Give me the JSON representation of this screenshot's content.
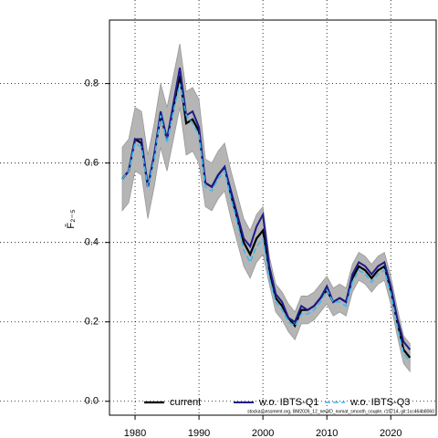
{
  "chart_data": {
    "type": "line",
    "ylabel": "F̄₂₋₅",
    "footnote": "stockassessment.org, BM2026_12_newID_nomat_smooth_couple, r19714, git:1cc464b8060",
    "x": [
      1978,
      1979,
      1980,
      1981,
      1982,
      1983,
      1984,
      1985,
      1986,
      1987,
      1988,
      1989,
      1990,
      1991,
      1992,
      1993,
      1994,
      1995,
      1996,
      1997,
      1998,
      1999,
      2000,
      2001,
      2002,
      2003,
      2004,
      2005,
      2006,
      2007,
      2008,
      2009,
      2010,
      2011,
      2012,
      2013,
      2014,
      2015,
      2016,
      2017,
      2018,
      2019,
      2020,
      2021,
      2022,
      2023
    ],
    "band": {
      "color": "#b5b5b5",
      "upper": [
        0.64,
        0.66,
        0.74,
        0.73,
        0.62,
        0.7,
        0.8,
        0.74,
        0.82,
        0.9,
        0.78,
        0.79,
        0.76,
        0.61,
        0.6,
        0.63,
        0.65,
        0.58,
        0.52,
        0.46,
        0.43,
        0.47,
        0.49,
        0.365,
        0.295,
        0.275,
        0.245,
        0.225,
        0.265,
        0.265,
        0.275,
        0.295,
        0.315,
        0.285,
        0.295,
        0.285,
        0.345,
        0.375,
        0.365,
        0.345,
        0.365,
        0.375,
        0.315,
        0.235,
        0.165,
        0.145
      ],
      "lower": [
        0.48,
        0.5,
        0.58,
        0.57,
        0.46,
        0.54,
        0.64,
        0.58,
        0.66,
        0.74,
        0.62,
        0.63,
        0.6,
        0.49,
        0.48,
        0.51,
        0.53,
        0.46,
        0.4,
        0.34,
        0.31,
        0.35,
        0.37,
        0.295,
        0.225,
        0.205,
        0.175,
        0.155,
        0.195,
        0.195,
        0.205,
        0.225,
        0.245,
        0.215,
        0.225,
        0.215,
        0.275,
        0.305,
        0.295,
        0.275,
        0.295,
        0.305,
        0.245,
        0.165,
        0.095,
        0.075
      ]
    },
    "series": [
      {
        "name": "current",
        "color": "#000000",
        "dash": "",
        "width": 2.2,
        "values": [
          0.56,
          0.58,
          0.66,
          0.65,
          0.54,
          0.62,
          0.72,
          0.66,
          0.74,
          0.82,
          0.7,
          0.71,
          0.68,
          0.55,
          0.54,
          0.57,
          0.59,
          0.52,
          0.46,
          0.4,
          0.37,
          0.41,
          0.43,
          0.33,
          0.26,
          0.24,
          0.21,
          0.19,
          0.23,
          0.23,
          0.24,
          0.26,
          0.28,
          0.25,
          0.26,
          0.25,
          0.31,
          0.34,
          0.33,
          0.31,
          0.33,
          0.34,
          0.28,
          0.2,
          0.13,
          0.11
        ]
      },
      {
        "name": "w.o. IBTS-Q1",
        "color": "#1f1a8a",
        "dash": "",
        "width": 2,
        "values": [
          0.56,
          0.58,
          0.66,
          0.66,
          0.54,
          0.62,
          0.73,
          0.66,
          0.75,
          0.84,
          0.72,
          0.73,
          0.69,
          0.55,
          0.54,
          0.57,
          0.59,
          0.53,
          0.47,
          0.41,
          0.39,
          0.44,
          0.47,
          0.34,
          0.27,
          0.25,
          0.21,
          0.2,
          0.24,
          0.23,
          0.24,
          0.26,
          0.29,
          0.25,
          0.26,
          0.25,
          0.32,
          0.35,
          0.34,
          0.32,
          0.34,
          0.35,
          0.29,
          0.21,
          0.15,
          0.13
        ]
      },
      {
        "name": "w.o. IBTS-Q3",
        "color": "#3fb8f0",
        "dash": "6 3",
        "width": 1.6,
        "values": [
          0.56,
          0.58,
          0.65,
          0.64,
          0.54,
          0.61,
          0.72,
          0.65,
          0.73,
          0.8,
          0.72,
          0.7,
          0.67,
          0.54,
          0.53,
          0.56,
          0.58,
          0.51,
          0.45,
          0.38,
          0.35,
          0.39,
          0.41,
          0.31,
          0.25,
          0.23,
          0.2,
          0.19,
          0.22,
          0.22,
          0.23,
          0.25,
          0.28,
          0.25,
          0.25,
          0.24,
          0.3,
          0.33,
          0.32,
          0.3,
          0.32,
          0.33,
          0.27,
          0.19,
          0.12,
          0.1
        ]
      }
    ],
    "xlim": [
      1976,
      2027.1
    ],
    "ylim": [
      -0.035,
      0.96
    ],
    "xticks": [
      1980,
      1990,
      2000,
      2010,
      2020
    ],
    "yticks": [
      {
        "value": 0,
        "label": "0.0"
      },
      0.2,
      0.4,
      0.6,
      0.8
    ],
    "grid": true
  }
}
